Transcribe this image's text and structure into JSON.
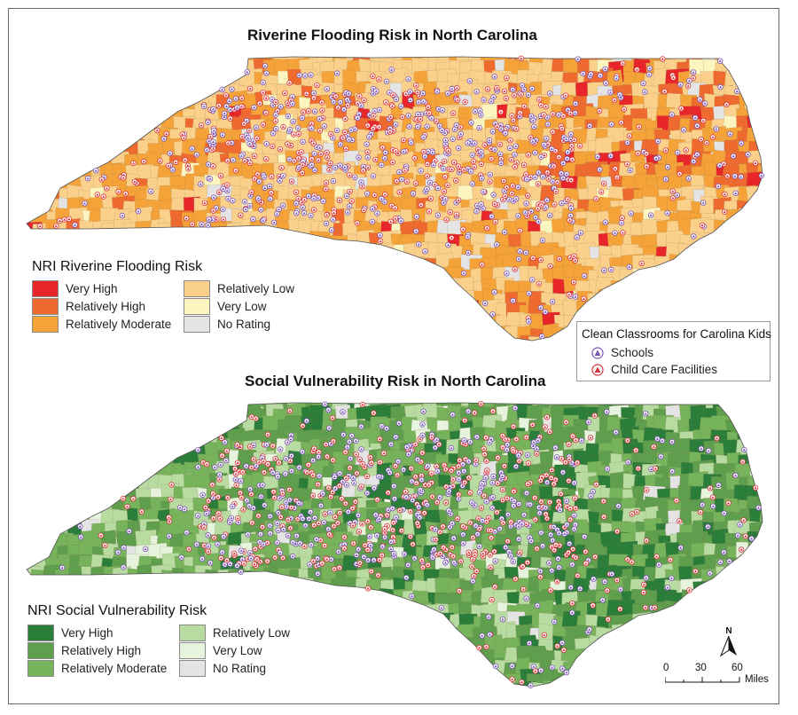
{
  "titles": {
    "top": "Riverine Flooding Risk in North Carolina",
    "bottom": "Social Vulnerability Risk in North Carolina"
  },
  "flood_legend": {
    "title": "NRI Riverine Flooding Risk",
    "items": [
      {
        "label": "Very High",
        "color": "#e8262a"
      },
      {
        "label": "Relatively High",
        "color": "#ef6a2e"
      },
      {
        "label": "Relatively Moderate",
        "color": "#f5a338"
      },
      {
        "label": "Relatively Low",
        "color": "#fbd08a"
      },
      {
        "label": "Very Low",
        "color": "#fdf5c0"
      },
      {
        "label": "No Rating",
        "color": "#e4e4e4"
      }
    ]
  },
  "svi_legend": {
    "title": "NRI Social Vulnerability Risk",
    "items": [
      {
        "label": "Very High",
        "color": "#2b7d3a"
      },
      {
        "label": "Relatively High",
        "color": "#5f9e4d"
      },
      {
        "label": "Relatively Moderate",
        "color": "#76b35a"
      },
      {
        "label": "Relatively Low",
        "color": "#b7dba0"
      },
      {
        "label": "Very Low",
        "color": "#e7f4dd"
      },
      {
        "label": "No Rating",
        "color": "#e4e4e4"
      }
    ]
  },
  "points_legend": {
    "title": "Clean Classrooms for Carolina Kids",
    "schools": {
      "label": "Schools",
      "color": "#7b55b5"
    },
    "childcare": {
      "label": "Child Care Facilities",
      "color": "#d7343a"
    }
  },
  "north_arrow": {
    "label": "N"
  },
  "scale_bar": {
    "ticks": [
      "0",
      "30",
      "60"
    ],
    "units": "Miles"
  }
}
